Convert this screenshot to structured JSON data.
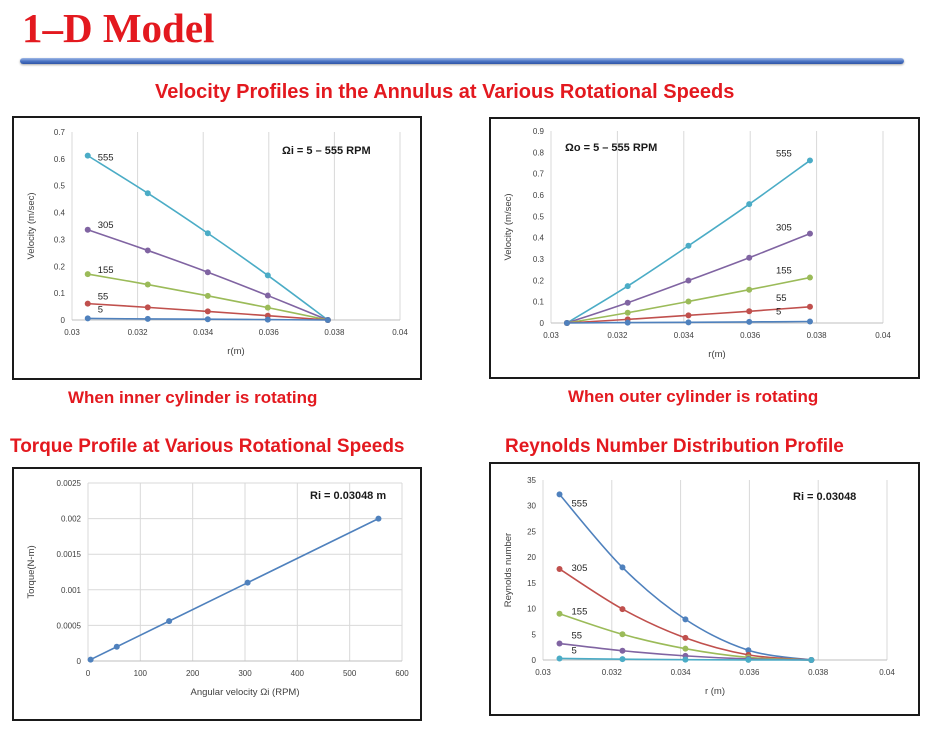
{
  "page": {
    "title": "1–D Model",
    "section_velocity": "Velocity Profiles in the Annulus at Various Rotational Speeds",
    "caption_inner": "When inner cylinder is rotating",
    "caption_outer": "When outer cylinder is rotating",
    "heading_torque": "Torque Profile at Various Rotational Speeds",
    "heading_reynolds": "Reynolds Number Distribution Profile"
  },
  "colors": {
    "accent": "#e3191f",
    "rule": "#4a73c3"
  },
  "chart_data": [
    {
      "id": "inner",
      "type": "line",
      "xlabel": "r(m)",
      "ylabel": "Velocity (m/sec)",
      "annotation": "Ωi = 5 – 555 RPM",
      "xlim": [
        0.03,
        0.04
      ],
      "ylim": [
        0,
        0.7
      ],
      "xticks": [
        "0.03",
        "0.032",
        "0.034",
        "0.036",
        "0.038",
        "0.04"
      ],
      "yticks": [
        "0",
        "0.1",
        "0.2",
        "0.3",
        "0.4",
        "0.5",
        "0.6",
        "0.7"
      ],
      "grid": "vertical",
      "x": [
        0.03048,
        0.03231,
        0.03414,
        0.03597,
        0.0378
      ],
      "series": [
        {
          "label": "555",
          "color": "#4bacc6",
          "values": [
            0.612,
            0.472,
            0.323,
            0.166,
            0.0
          ]
        },
        {
          "label": "305",
          "color": "#8064a2",
          "values": [
            0.336,
            0.259,
            0.178,
            0.091,
            0.0
          ]
        },
        {
          "label": "155",
          "color": "#9bbb59",
          "values": [
            0.171,
            0.132,
            0.09,
            0.046,
            0.0
          ]
        },
        {
          "label": "55",
          "color": "#c0504d",
          "values": [
            0.061,
            0.047,
            0.032,
            0.016,
            0.0
          ]
        },
        {
          "label": "5",
          "color": "#4f81bd",
          "values": [
            0.006,
            0.004,
            0.003,
            0.0015,
            0.0
          ]
        }
      ]
    },
    {
      "id": "outer",
      "type": "line",
      "xlabel": "r(m)",
      "ylabel": "Velocity (m/sec)",
      "annotation": "Ωo = 5 – 555 RPM",
      "xlim": [
        0.03,
        0.04
      ],
      "ylim": [
        0,
        0.9
      ],
      "xticks": [
        "0.03",
        "0.032",
        "0.034",
        "0.036",
        "0.038",
        "0.04"
      ],
      "yticks": [
        "0",
        "0.1",
        "0.2",
        "0.3",
        "0.4",
        "0.5",
        "0.6",
        "0.7",
        "0.8",
        "0.9"
      ],
      "grid": "vertical",
      "x": [
        0.03048,
        0.03231,
        0.03414,
        0.03597,
        0.0378
      ],
      "series": [
        {
          "label": "555",
          "color": "#4bacc6",
          "values": [
            0.0,
            0.173,
            0.362,
            0.557,
            0.762
          ]
        },
        {
          "label": "305",
          "color": "#8064a2",
          "values": [
            0.0,
            0.095,
            0.199,
            0.306,
            0.419
          ]
        },
        {
          "label": "155",
          "color": "#9bbb59",
          "values": [
            0.0,
            0.048,
            0.101,
            0.156,
            0.213
          ]
        },
        {
          "label": "55",
          "color": "#c0504d",
          "values": [
            0.0,
            0.017,
            0.036,
            0.055,
            0.076
          ]
        },
        {
          "label": "5",
          "color": "#4f81bd",
          "values": [
            0.0,
            0.002,
            0.003,
            0.005,
            0.007
          ]
        }
      ]
    },
    {
      "id": "torque",
      "type": "line",
      "xlabel": "Angular velocity Ωi (RPM)",
      "ylabel": "Torque(N-m)",
      "annotation": "Ri = 0.03048 m",
      "xlim": [
        0,
        600
      ],
      "ylim": [
        0,
        0.0025
      ],
      "xticks": [
        "0",
        "100",
        "200",
        "300",
        "400",
        "500",
        "600"
      ],
      "yticks": [
        "0",
        "0.0005",
        "0.001",
        "0.0015",
        "0.002",
        "0.0025"
      ],
      "grid": "both",
      "x": [
        5,
        55,
        155,
        305,
        555
      ],
      "series": [
        {
          "label": "",
          "color": "#4f81bd",
          "values": [
            2e-05,
            0.0002,
            0.00056,
            0.0011,
            0.002
          ]
        }
      ]
    },
    {
      "id": "reynolds",
      "type": "line",
      "xlabel": "r (m)",
      "ylabel": "Reynolds number",
      "annotation": "Ri = 0.03048",
      "xlim": [
        0.03,
        0.04
      ],
      "ylim": [
        0,
        35
      ],
      "xticks": [
        "0.03",
        "0.032",
        "0.034",
        "0.036",
        "0.038",
        "0.04"
      ],
      "yticks": [
        "0",
        "5",
        "10",
        "15",
        "20",
        "25",
        "30",
        "35"
      ],
      "grid": "vertical",
      "x": [
        0.03048,
        0.03231,
        0.03414,
        0.03597,
        0.0378
      ],
      "series": [
        {
          "label": "555",
          "color": "#4f81bd",
          "values": [
            32.2,
            18.0,
            7.9,
            1.9,
            0.0
          ]
        },
        {
          "label": "305",
          "color": "#c0504d",
          "values": [
            17.7,
            9.9,
            4.3,
            1.0,
            0.0
          ]
        },
        {
          "label": "155",
          "color": "#9bbb59",
          "values": [
            9.0,
            5.0,
            2.2,
            0.5,
            0.0
          ]
        },
        {
          "label": "55",
          "color": "#8064a2",
          "values": [
            3.2,
            1.8,
            0.8,
            0.2,
            0.0
          ]
        },
        {
          "label": "5",
          "color": "#4bacc6",
          "values": [
            0.3,
            0.16,
            0.07,
            0.02,
            0.0
          ]
        }
      ]
    }
  ]
}
